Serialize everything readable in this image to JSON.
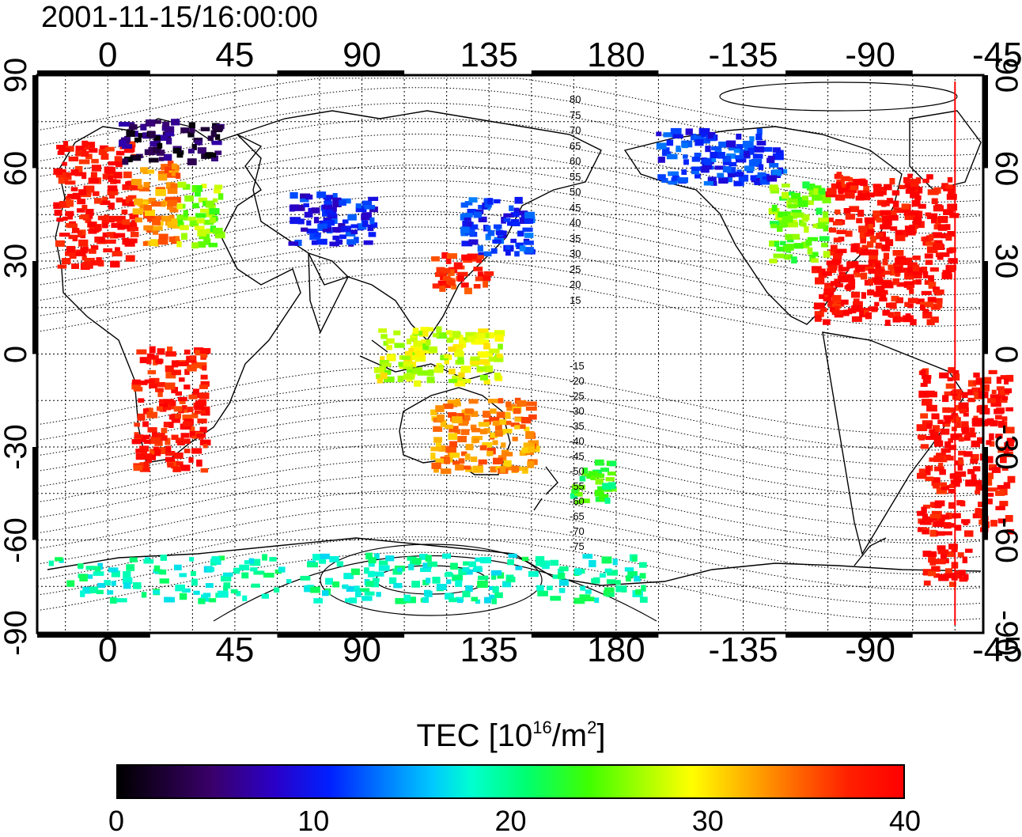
{
  "timestamp": "2001-11-15/16:00:00",
  "axes": {
    "top_ticks": [
      "0",
      "45",
      "90",
      "135",
      "180",
      "-135",
      "-90",
      "-45"
    ],
    "bottom_ticks": [
      "0",
      "45",
      "90",
      "135",
      "180",
      "-135",
      "-90",
      "-45"
    ],
    "left_ticks": [
      "90",
      "60",
      "30",
      "0",
      "-30",
      "-60",
      "-90"
    ],
    "right_ticks": [
      "90",
      "60",
      "30",
      "0",
      "-30",
      "-60",
      "-90"
    ],
    "lon_range": [
      -25,
      310
    ],
    "lat_range": [
      -90,
      90
    ],
    "grid": true
  },
  "colorbar": {
    "title_prefix": "TEC  [10",
    "title_exp1": "16",
    "title_mid": "/m",
    "title_exp2": "2",
    "title_suffix": "]",
    "ticks": [
      "0",
      "10",
      "20",
      "30",
      "40"
    ],
    "range": [
      0,
      40
    ],
    "colors": [
      "#000000",
      "#3a006a",
      "#2a00c8",
      "#0020ff",
      "#0070ff",
      "#00c8ff",
      "#00ffd0",
      "#00ff70",
      "#40ff00",
      "#a8ff00",
      "#ffff00",
      "#ffb000",
      "#ff6000",
      "#ff2000",
      "#ff0000"
    ]
  },
  "contour_labels": {
    "north": [
      "80",
      "75",
      "70",
      "65",
      "60",
      "55",
      "50",
      "45",
      "40",
      "35",
      "30",
      "25",
      "20",
      "15"
    ],
    "south": [
      "-15",
      "-20",
      "-25",
      "-30",
      "-35",
      "-40",
      "-45",
      "-50",
      "-55",
      "-60",
      "-65",
      "-70",
      "-75"
    ]
  },
  "marker_line": {
    "lon": -60,
    "color": "#ff0000"
  },
  "tec_regions": [
    {
      "name": "europe-west",
      "lon": [
        -18,
        10
      ],
      "lat": [
        28,
        68
      ],
      "tec": 39
    },
    {
      "name": "europe-central",
      "lon": [
        10,
        25
      ],
      "lat": [
        35,
        62
      ],
      "tec": 33
    },
    {
      "name": "europe-east",
      "lon": [
        25,
        40
      ],
      "lat": [
        35,
        55
      ],
      "tec": 25
    },
    {
      "name": "scandinavia",
      "lon": [
        5,
        40
      ],
      "lat": [
        62,
        75
      ],
      "tec": 2
    },
    {
      "name": "north-america-east",
      "lon": [
        -105,
        -60
      ],
      "lat": [
        25,
        58
      ],
      "tec": 39
    },
    {
      "name": "north-america-west",
      "lon": [
        -125,
        -105
      ],
      "lat": [
        30,
        55
      ],
      "tec": 24
    },
    {
      "name": "canada",
      "lon": [
        -165,
        -120
      ],
      "lat": [
        55,
        72
      ],
      "tec": 9
    },
    {
      "name": "japan-north",
      "lon": [
        125,
        150
      ],
      "lat": [
        32,
        50
      ],
      "tec": 9
    },
    {
      "name": "japan-south",
      "lon": [
        115,
        135
      ],
      "lat": [
        20,
        32
      ],
      "tec": 37
    },
    {
      "name": "central-asia",
      "lon": [
        65,
        95
      ],
      "lat": [
        35,
        52
      ],
      "tec": 8
    },
    {
      "name": "mexico-caribbean",
      "lon": [
        -110,
        -65
      ],
      "lat": [
        10,
        28
      ],
      "tec": 39
    },
    {
      "name": "south-america",
      "lon": [
        -72,
        -40
      ],
      "lat": [
        -58,
        -5
      ],
      "tec": 39
    },
    {
      "name": "africa-south",
      "lon": [
        10,
        35
      ],
      "lat": [
        -38,
        2
      ],
      "tec": 38
    },
    {
      "name": "australia",
      "lon": [
        115,
        152
      ],
      "lat": [
        -38,
        -15
      ],
      "tec": 33
    },
    {
      "name": "new-zealand",
      "lon": [
        165,
        180
      ],
      "lat": [
        -48,
        -35
      ],
      "tec": 22
    },
    {
      "name": "indonesia",
      "lon": [
        95,
        140
      ],
      "lat": [
        -10,
        8
      ],
      "tec": 27
    },
    {
      "name": "antarctic-coast",
      "lon": [
        -20,
        190
      ],
      "lat": [
        -80,
        -65
      ],
      "tec": 18
    },
    {
      "name": "antarctic-peninsula",
      "lon": [
        -70,
        -55
      ],
      "lat": [
        -75,
        -62
      ],
      "tec": 39
    }
  ]
}
